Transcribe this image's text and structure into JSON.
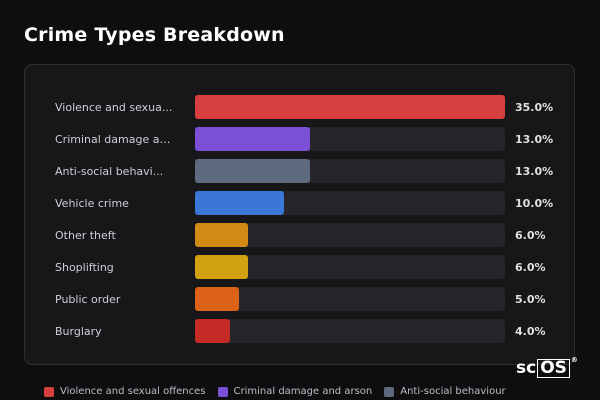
{
  "title": "Crime Types Breakdown",
  "logo": {
    "prefix": "sc",
    "boxed": "OS",
    "mark": "®"
  },
  "chart_data": {
    "type": "bar",
    "orientation": "horizontal",
    "title": "Crime Types Breakdown",
    "xlim": [
      0,
      35
    ],
    "categories": [
      "Violence and sexua...",
      "Criminal damage an...",
      "Anti-social behavi...",
      "Vehicle crime",
      "Other theft",
      "Shoplifting",
      "Public order",
      "Burglary"
    ],
    "values": [
      35.0,
      13.0,
      13.0,
      10.0,
      6.0,
      6.0,
      5.0,
      4.0
    ],
    "value_labels": [
      "35.0%",
      "13.0%",
      "13.0%",
      "10.0%",
      "6.0%",
      "6.0%",
      "5.0%",
      "4.0%"
    ],
    "colors": [
      "#d8403f",
      "#7b4fd6",
      "#5e6a7e",
      "#3a77d6",
      "#d38a14",
      "#d1a10f",
      "#dc6218",
      "#c52a27"
    ],
    "legend": [
      {
        "label": "Violence and sexual offences",
        "color": "#d8403f"
      },
      {
        "label": "Criminal damage and arson",
        "color": "#7b4fd6"
      },
      {
        "label": "Anti-social behaviour",
        "color": "#5e6a7e"
      }
    ]
  }
}
